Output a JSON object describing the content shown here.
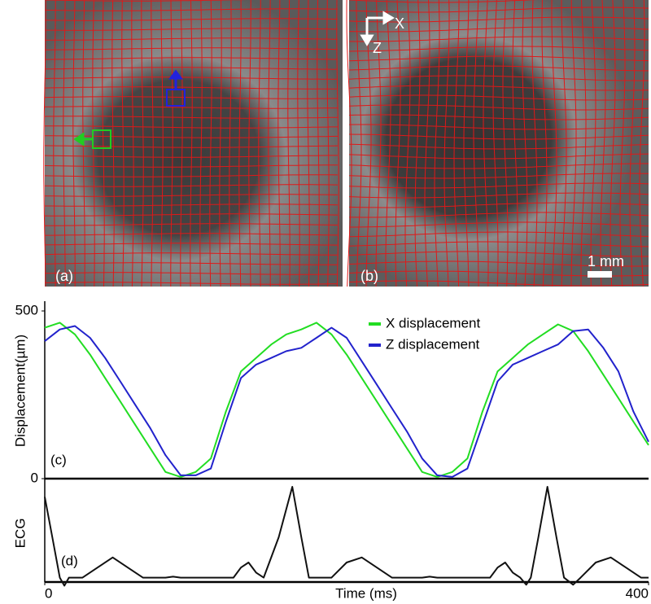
{
  "panels": {
    "a": {
      "label": "(a)"
    },
    "b": {
      "label": "(b)",
      "scale_bar": "1 mm",
      "axis_x": "X",
      "axis_z": "Z"
    }
  },
  "chart_data": [
    {
      "type": "line",
      "label": "(c)",
      "ylabel": "Displacement(µm)",
      "x": [
        0,
        10,
        20,
        30,
        40,
        50,
        60,
        70,
        80,
        90,
        100,
        110,
        120,
        130,
        140,
        150,
        160,
        170,
        180,
        190,
        200,
        210,
        220,
        230,
        240,
        250,
        260,
        270,
        280,
        290,
        300,
        310,
        320,
        330,
        340,
        350,
        360,
        370,
        380,
        390,
        400
      ],
      "series": [
        {
          "name": "X displacement",
          "color": "#22dd22",
          "values": [
            450,
            465,
            430,
            370,
            300,
            230,
            160,
            90,
            20,
            5,
            20,
            60,
            200,
            320,
            360,
            400,
            430,
            445,
            465,
            430,
            370,
            300,
            230,
            160,
            90,
            20,
            5,
            20,
            60,
            200,
            320,
            360,
            400,
            430,
            460,
            440,
            380,
            310,
            240,
            170,
            100
          ]
        },
        {
          "name": "Z displacement",
          "color": "#2222cc",
          "values": [
            410,
            445,
            455,
            420,
            360,
            290,
            220,
            150,
            70,
            10,
            10,
            30,
            170,
            300,
            340,
            360,
            380,
            390,
            420,
            450,
            420,
            350,
            280,
            210,
            140,
            60,
            10,
            5,
            30,
            160,
            290,
            340,
            360,
            380,
            400,
            440,
            445,
            390,
            320,
            200,
            110
          ]
        }
      ],
      "xlim": [
        0,
        400
      ],
      "ylim": [
        0,
        500
      ],
      "yticks": [
        0,
        500
      ]
    },
    {
      "type": "line",
      "label": "(d)",
      "ylabel": "ECG",
      "xlabel": "Time (ms)",
      "color": "#111111",
      "x": [
        0,
        5,
        10,
        13,
        16,
        25,
        35,
        45,
        55,
        65,
        80,
        85,
        90,
        125,
        130,
        135,
        140,
        145,
        155,
        164,
        170,
        175,
        190,
        200,
        210,
        220,
        230,
        250,
        255,
        260,
        295,
        300,
        305,
        310,
        315,
        319,
        322,
        327,
        333,
        339,
        344,
        350,
        355,
        365,
        375,
        385,
        395,
        400
      ],
      "values": [
        0.9,
        0.5,
        0.1,
        0.02,
        0.1,
        0.1,
        0.2,
        0.3,
        0.2,
        0.1,
        0.1,
        0.11,
        0.1,
        0.1,
        0.2,
        0.25,
        0.15,
        0.1,
        0.5,
        1.0,
        0.5,
        0.1,
        0.1,
        0.25,
        0.3,
        0.2,
        0.1,
        0.1,
        0.11,
        0.1,
        0.1,
        0.2,
        0.25,
        0.15,
        0.1,
        0.03,
        0.1,
        0.5,
        1.0,
        0.5,
        0.1,
        0.03,
        0.1,
        0.25,
        0.3,
        0.2,
        0.1,
        0.1
      ],
      "xlim": [
        0,
        400
      ],
      "ylim": [
        0,
        1
      ],
      "xticks": [
        0,
        400
      ]
    }
  ]
}
